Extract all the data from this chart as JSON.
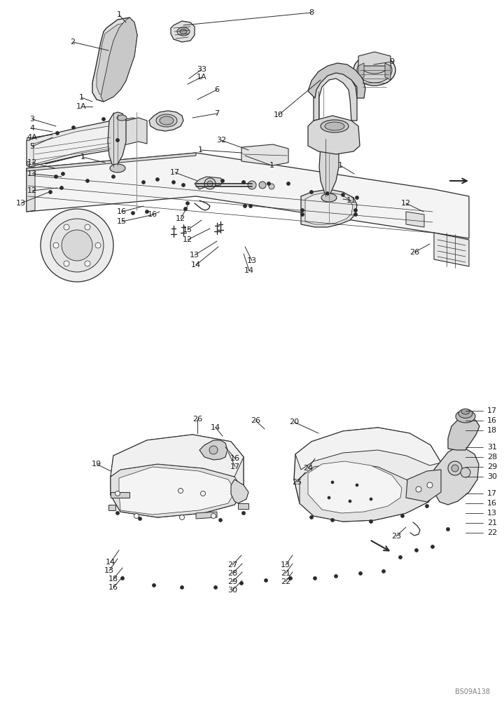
{
  "background_color": "#ffffff",
  "figure_width": 7.2,
  "figure_height": 10.0,
  "dpi": 100,
  "watermark": "BS09A138",
  "line_color": "#2a2a2a",
  "text_color": "#1a1a1a",
  "font_size": 8.0
}
